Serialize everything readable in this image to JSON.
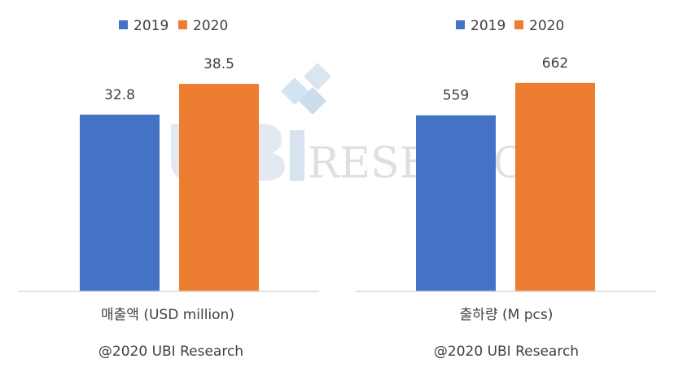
{
  "colors": {
    "s2019": "#4472C4",
    "s2020": "#ED7D31",
    "axis": "#D9D9D9",
    "text": "#404040"
  },
  "watermark": {
    "text": "RESEARCH",
    "logo": "UBi"
  },
  "chart_data": [
    {
      "type": "bar",
      "categories": [
        "매출액 (USD million)"
      ],
      "series": [
        {
          "name": "2019",
          "values": [
            32.8
          ]
        },
        {
          "name": "2020",
          "values": [
            38.5
          ]
        }
      ],
      "title": "",
      "xlabel": "",
      "ylabel": "",
      "ylim": [
        0,
        45
      ],
      "grid": false,
      "legend": "top",
      "credit": "@2020 UBI Research"
    },
    {
      "type": "bar",
      "categories": [
        "출하량 (M pcs)"
      ],
      "series": [
        {
          "name": "2019",
          "values": [
            559
          ]
        },
        {
          "name": "2020",
          "values": [
            662
          ]
        }
      ],
      "title": "",
      "xlabel": "",
      "ylabel": "",
      "ylim": [
        0,
        770
      ],
      "grid": false,
      "legend": "top",
      "credit": "@2020 UBI Research"
    }
  ]
}
